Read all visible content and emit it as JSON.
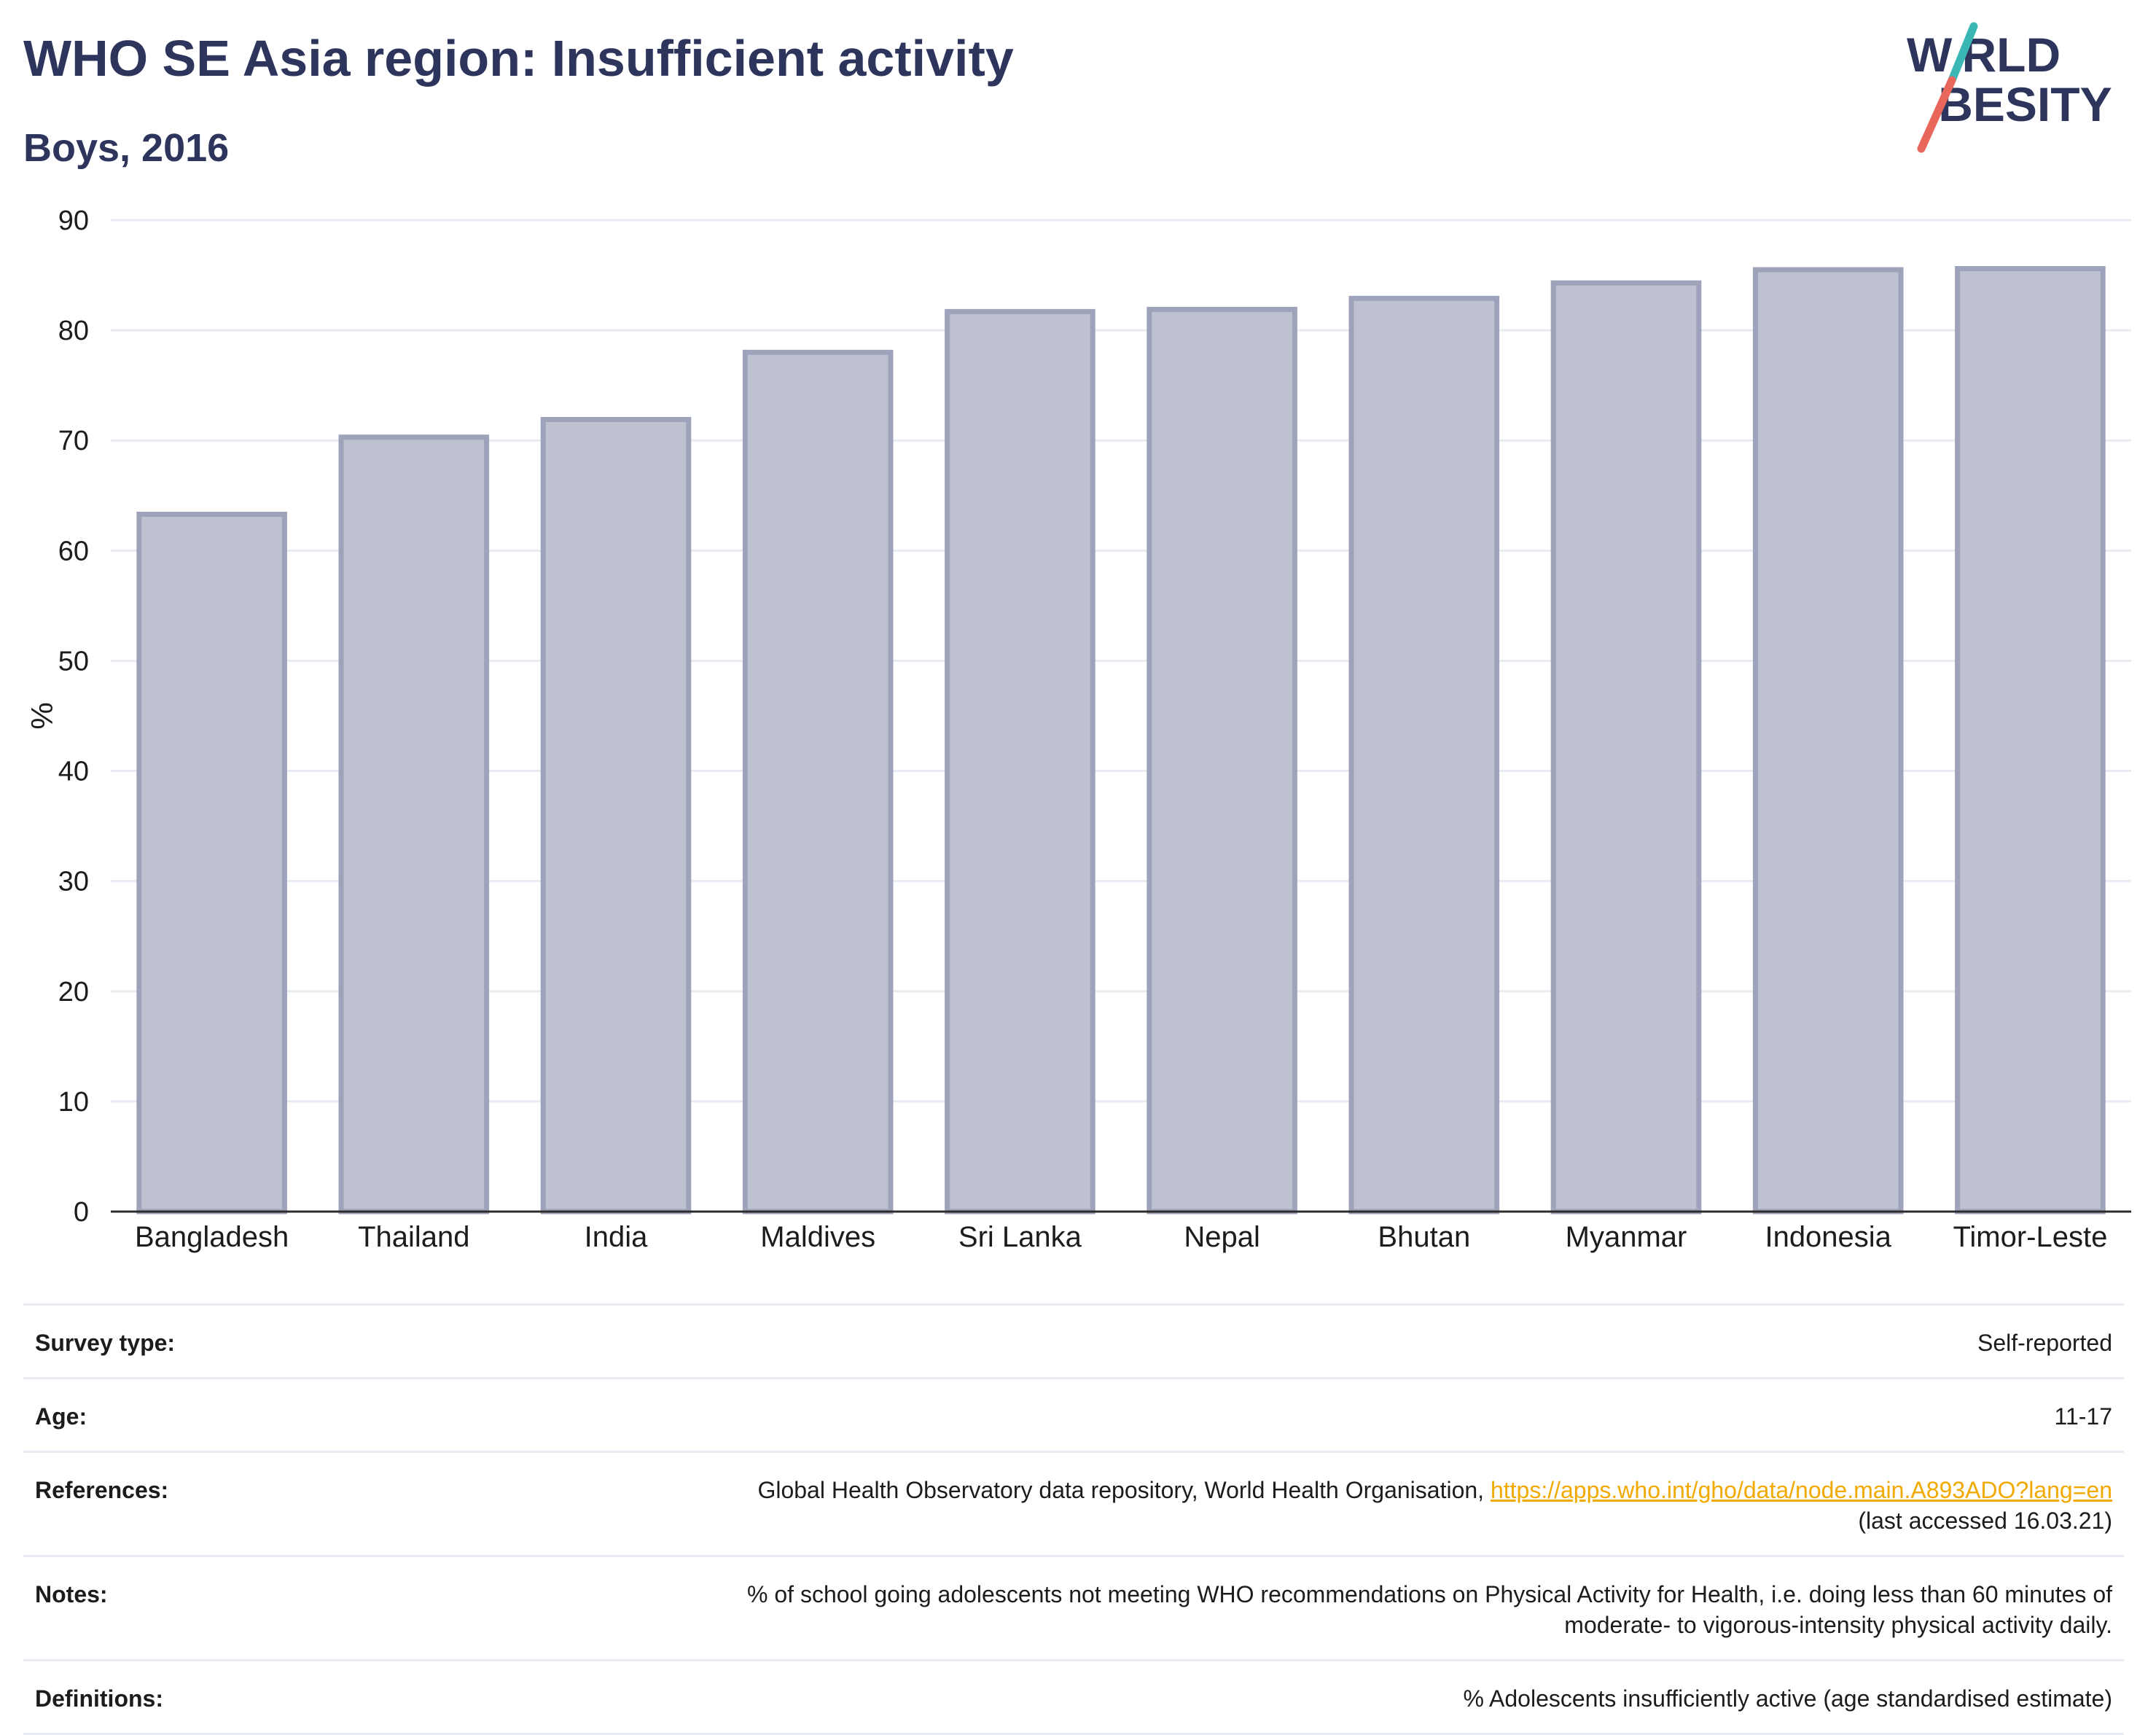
{
  "header": {
    "title": "WHO SE Asia region: Insufficient activity",
    "subtitle": "Boys, 2016"
  },
  "logo": {
    "line1": "W RLD",
    "line2": " BESITY",
    "text": "WORLD OBESITY",
    "colors": {
      "text": "#2d355c",
      "slash_top": "#3ab7b4",
      "slash_bottom": "#e8675a"
    }
  },
  "chart_data": {
    "type": "bar",
    "title": "",
    "xlabel": "",
    "ylabel": "%",
    "ylim": [
      0,
      90
    ],
    "yticks": [
      0,
      10,
      20,
      30,
      40,
      50,
      60,
      70,
      80,
      90
    ],
    "grid": true,
    "categories": [
      "Bangladesh",
      "Thailand",
      "India",
      "Maldives",
      "Sri Lanka",
      "Nepal",
      "Bhutan",
      "Myanmar",
      "Indonesia",
      "Timor-Leste"
    ],
    "values": [
      63.3,
      70.3,
      71.9,
      78.0,
      81.7,
      81.9,
      82.9,
      84.3,
      85.5,
      85.6
    ],
    "colors": {
      "bar_fill": "#bec1cf",
      "bar_stroke": "#9ea3bb",
      "grid": "#e8ebf1",
      "axis": "#2d2d2d"
    }
  },
  "meta": {
    "survey_type": {
      "label": "Survey type:",
      "value": "Self-reported"
    },
    "age": {
      "label": "Age:",
      "value": "11-17"
    },
    "references": {
      "label": "References:",
      "text": "Global Health Observatory data repository, World Health Organisation, ",
      "link": "https://apps.who.int/gho/data/node.main.A893ADO?lang=en",
      "suffix": "(last accessed 16.03.21)"
    },
    "notes": {
      "label": "Notes:",
      "line1": "% of school going adolescents not meeting WHO recommendations on Physical Activity for Health, i.e. doing less than 60 minutes of",
      "line2": "moderate- to vigorous-intensity physical activity daily."
    },
    "definitions": {
      "label": "Definitions:",
      "value": "% Adolescents insufficiently active (age standardised estimate)"
    }
  }
}
